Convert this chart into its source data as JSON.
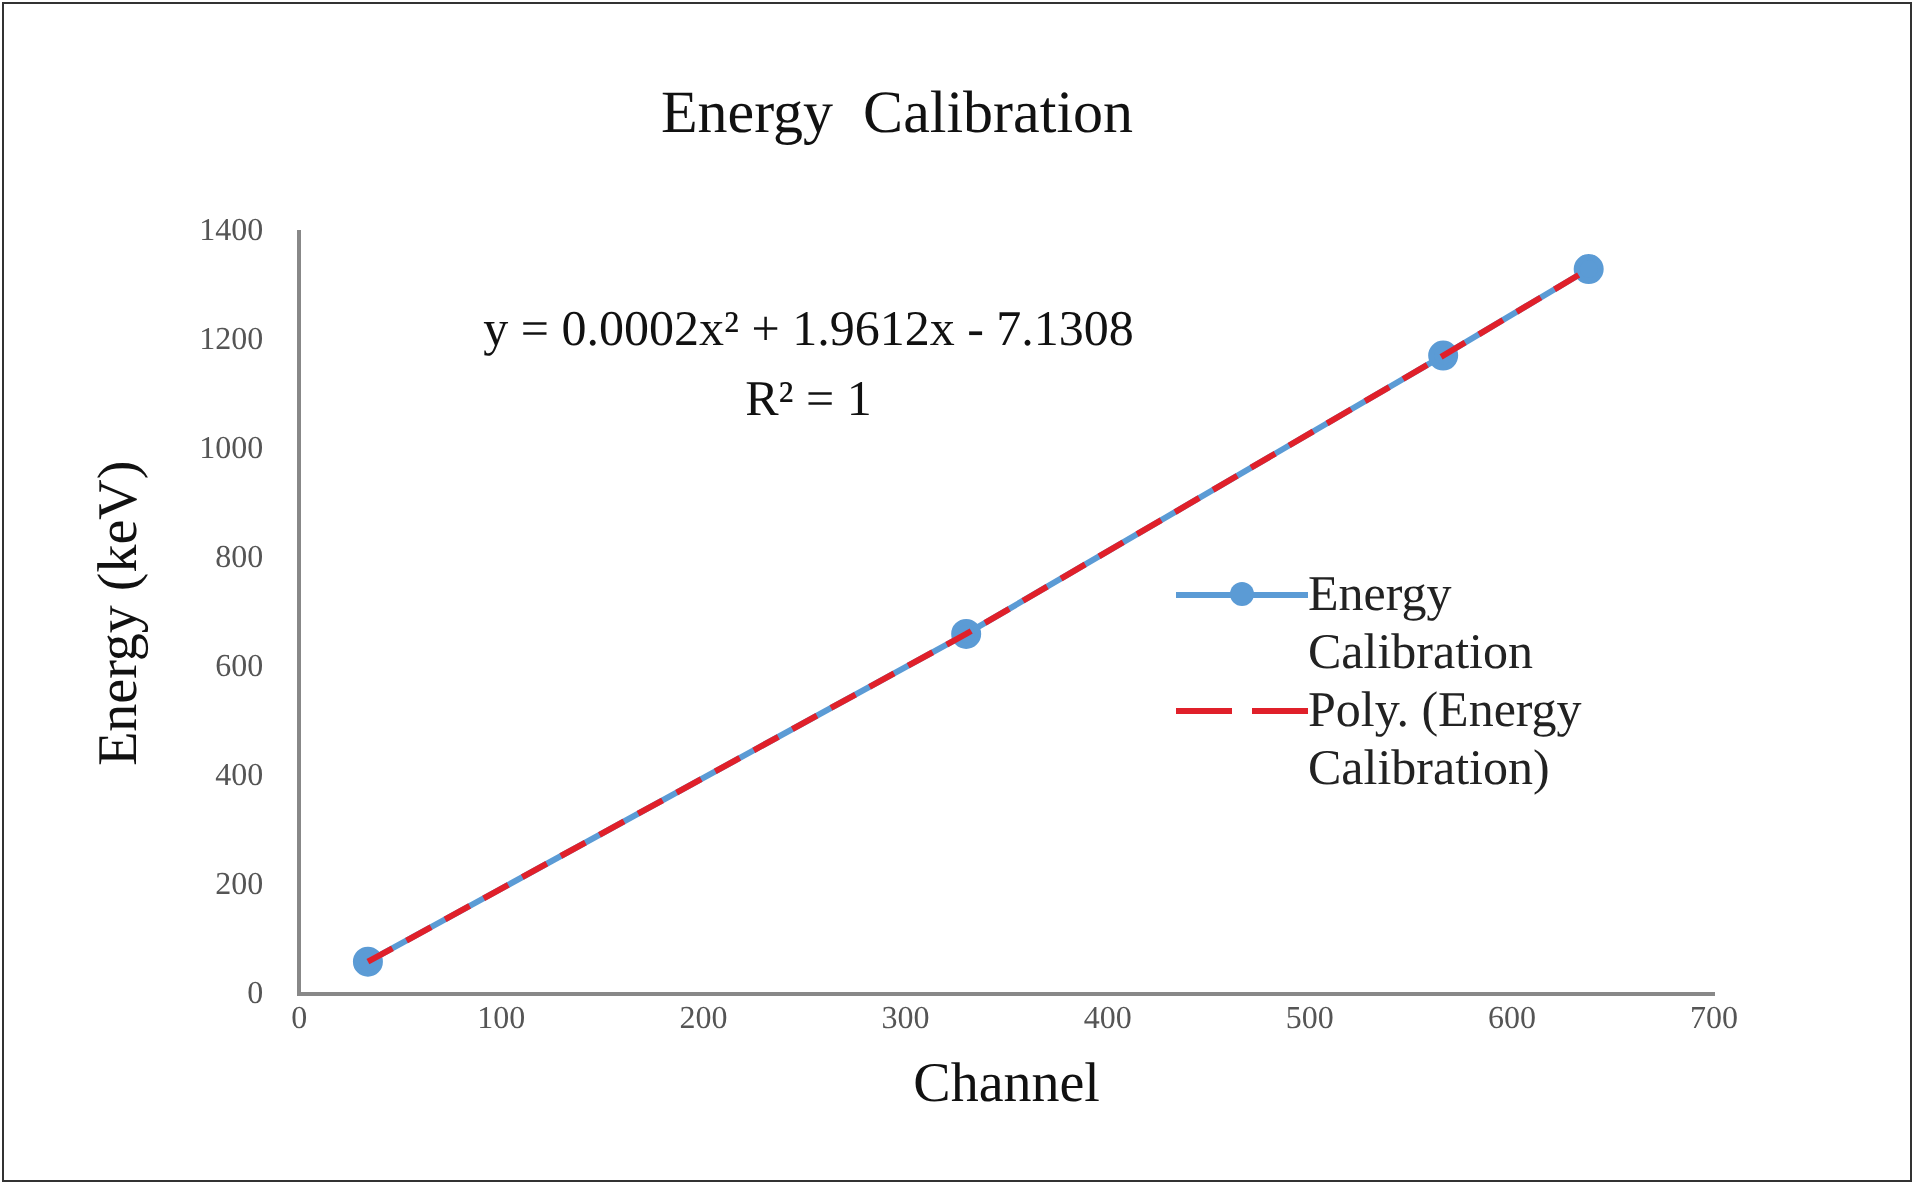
{
  "chart_data": {
    "type": "line",
    "title": "Energy  Calibration",
    "xlabel": "Channel",
    "ylabel": "Energy (keV)",
    "x": [
      34,
      330,
      566,
      638
    ],
    "series": [
      {
        "name": "Energy Calibration",
        "type": "line",
        "color": "#5b9bd5",
        "marker": "circle",
        "line_style": "solid",
        "values": [
          60,
          662,
          1173,
          1332
        ]
      },
      {
        "name": "Poly. (Energy Calibration)",
        "type": "line",
        "color": "#e0202a",
        "marker": "none",
        "line_style": "dashed",
        "x": [
          34,
          330,
          566,
          638
        ],
        "values": [
          60,
          662,
          1173,
          1332
        ]
      }
    ],
    "xlim": [
      0,
      700
    ],
    "xticks": [
      0,
      100,
      200,
      300,
      400,
      500,
      600,
      700
    ],
    "ylim": [
      0,
      1400
    ],
    "yticks": [
      0,
      200,
      400,
      600,
      800,
      1000,
      1200,
      1400
    ],
    "grid": false,
    "legend": "right",
    "annotations": [
      "y = 0.0002x² + 1.9612x - 7.1308",
      "R² = 1"
    ]
  }
}
